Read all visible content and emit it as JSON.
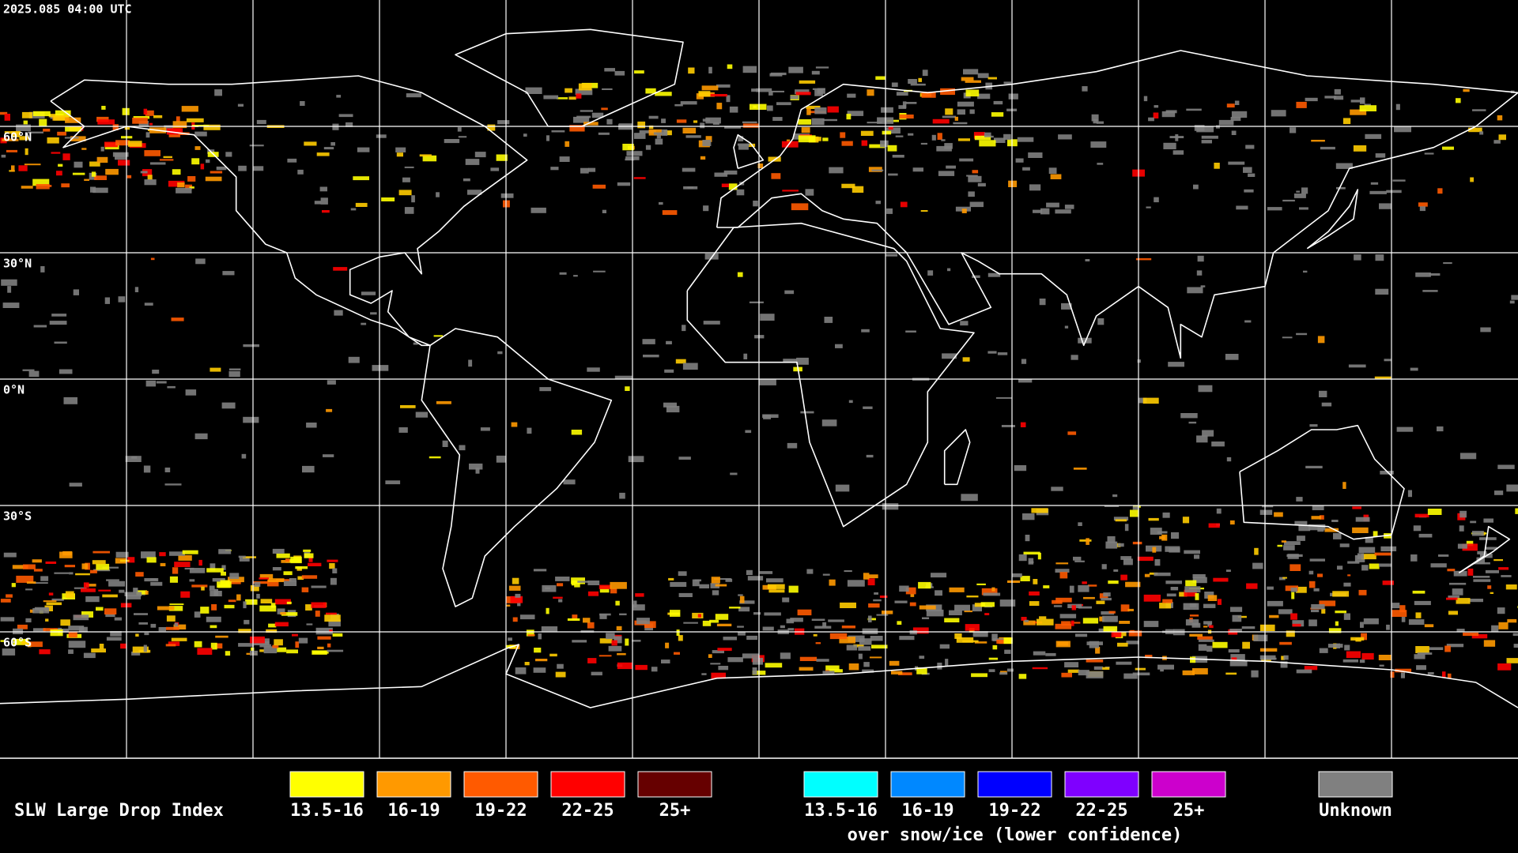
{
  "header": {
    "timestamp": "2025.085 04:00 UTC"
  },
  "map": {
    "lat_labels": [
      "60°N",
      "30°N",
      "0°N",
      "30°S",
      "60°S"
    ]
  },
  "legend": {
    "title": "SLW Large Drop Index",
    "groups": [
      {
        "items": [
          {
            "label": "13.5-16",
            "color": "#ffff00"
          },
          {
            "label": "16-19",
            "color": "#ff9900"
          },
          {
            "label": "19-22",
            "color": "#ff5a00"
          },
          {
            "label": "22-25",
            "color": "#ff0000"
          },
          {
            "label": "25+",
            "color": "#660000"
          }
        ]
      },
      {
        "items": [
          {
            "label": "13.5-16",
            "color": "#00ffff"
          },
          {
            "label": "16-19",
            "color": "#0088ff"
          },
          {
            "label": "19-22",
            "color": "#0000ff"
          },
          {
            "label": "22-25",
            "color": "#7f00ff"
          },
          {
            "label": "25+",
            "color": "#cc00cc"
          }
        ],
        "caption": "over snow/ice (lower confidence)"
      },
      {
        "items": [
          {
            "label": "Unknown",
            "color": "#808080"
          }
        ]
      }
    ]
  }
}
